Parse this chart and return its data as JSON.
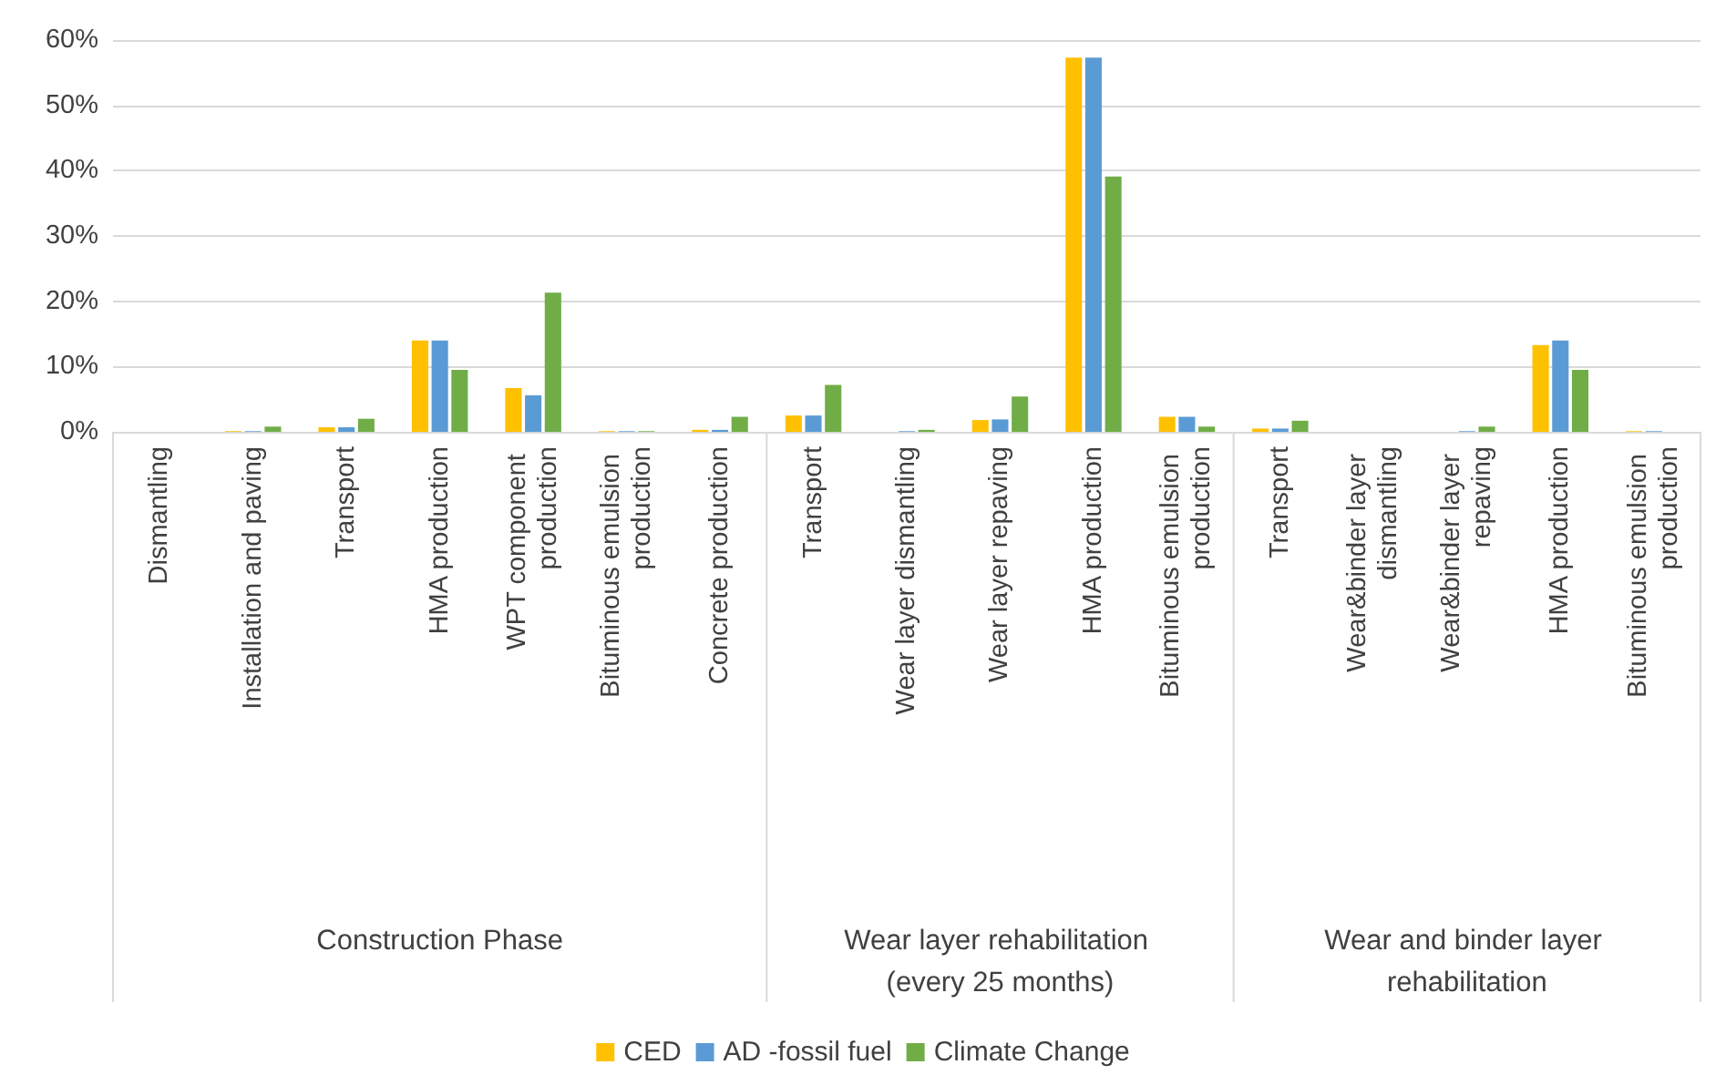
{
  "chart_data": {
    "type": "bar",
    "categories": [
      "Dismantling",
      "Installation and paving",
      "Transport",
      "HMA production",
      "WPT component production",
      "Bituminous emulsion production",
      "Concrete production",
      "Transport",
      "Wear layer dismantling",
      "Wear layer repaving",
      "HMA production",
      "Bituminous emulsion production",
      "Transport",
      "Wear&binder layer dismantling",
      "Wear&binder layer repaving",
      "HMA production",
      "Bituminous emulsion production"
    ],
    "series": [
      {
        "name": "CED",
        "color": "#ffc000",
        "values": [
          0,
          0.1,
          0.7,
          14.0,
          6.7,
          0.1,
          0.3,
          2.5,
          0,
          1.8,
          57.3,
          2.3,
          0.5,
          0,
          0,
          13.3,
          0.1
        ]
      },
      {
        "name": "AD -fossil fuel",
        "color": "#5b9bd5",
        "values": [
          0,
          0.1,
          0.7,
          14.0,
          5.6,
          0.1,
          0.3,
          2.5,
          0.1,
          1.9,
          57.3,
          2.3,
          0.5,
          0,
          0.1,
          14.0,
          0.1
        ]
      },
      {
        "name": "Climate Change",
        "color": "#70ad47",
        "values": [
          0,
          0.8,
          2.0,
          9.5,
          21.3,
          0.1,
          2.3,
          7.2,
          0.3,
          5.4,
          39.1,
          0.8,
          1.7,
          0,
          0.8,
          9.5,
          0
        ]
      }
    ],
    "annotations": [
      "Construction Phase",
      "Wear layer rehabilitation (every 25 months)",
      "Wear and binder layer rehabilitation"
    ],
    "ylim": [
      0,
      60
    ],
    "yticks": [
      {
        "value": 0,
        "label": "0%"
      },
      {
        "value": 10,
        "label": "10%"
      },
      {
        "value": 20,
        "label": "20%"
      },
      {
        "value": 30,
        "label": "30%"
      },
      {
        "value": 40,
        "label": "40%"
      },
      {
        "value": 50,
        "label": "50%"
      },
      {
        "value": 60,
        "label": "60%"
      }
    ],
    "grid": "y",
    "legend": "bottom"
  }
}
